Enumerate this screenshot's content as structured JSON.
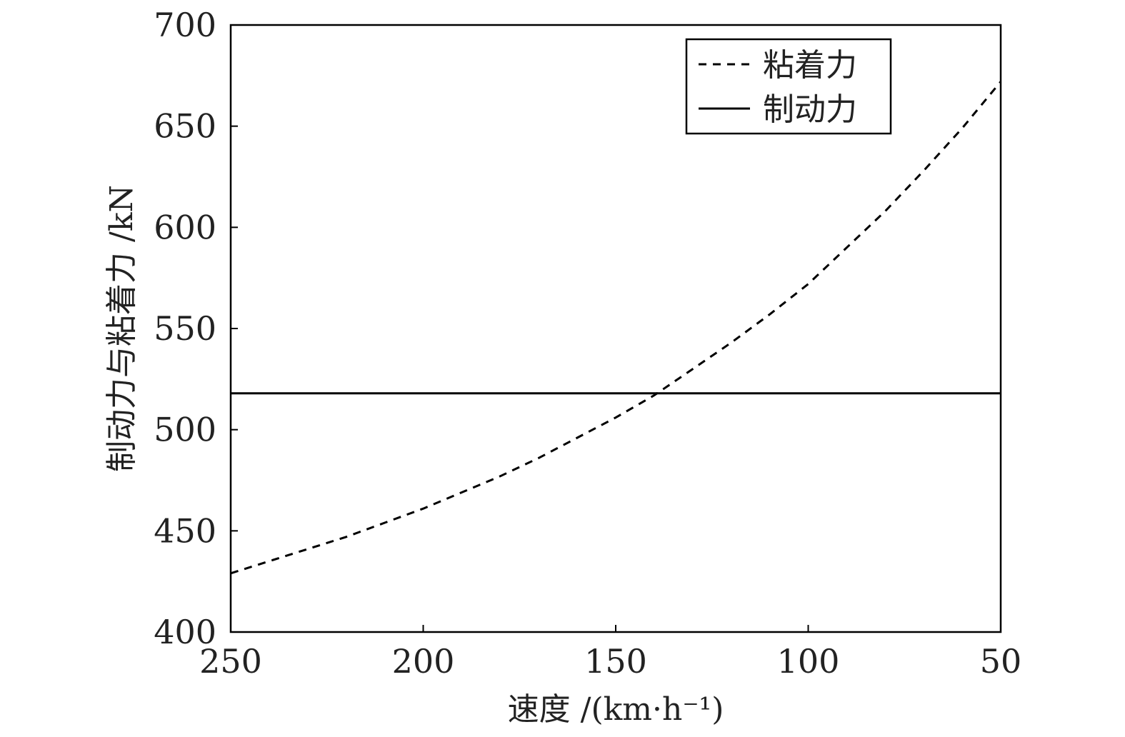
{
  "chart_data": {
    "type": "line",
    "xlabel": "速度 /(km·h⁻¹)",
    "ylabel": "制动力与粘着力 /kN",
    "xlim": [
      250,
      50
    ],
    "ylim": [
      400,
      700
    ],
    "x_reversed": true,
    "xticks": [
      250,
      200,
      150,
      100,
      50
    ],
    "xtick_labels": [
      "250",
      "200",
      "150",
      "100",
      "50"
    ],
    "yticks": [
      400,
      450,
      500,
      550,
      600,
      650,
      700
    ],
    "ytick_labels": [
      "400",
      "450",
      "500",
      "550",
      "600",
      "650",
      "700"
    ],
    "grid": false,
    "legend_position": "top-right",
    "series": [
      {
        "name": "粘着力",
        "style": "dashed",
        "color": "#000000",
        "x": [
          250,
          240,
          230,
          220,
          210,
          200,
          190,
          180,
          170,
          160,
          150,
          140,
          130,
          120,
          110,
          100,
          90,
          80,
          70,
          60,
          50
        ],
        "y": [
          429,
          435,
          441,
          447,
          454,
          461,
          469,
          477,
          486,
          496,
          506,
          517,
          530,
          543,
          557,
          572,
          590,
          608,
          628,
          649,
          672
        ]
      },
      {
        "name": "制动力",
        "style": "solid",
        "color": "#000000",
        "x": [
          250,
          50
        ],
        "y": [
          518,
          518
        ]
      }
    ]
  }
}
